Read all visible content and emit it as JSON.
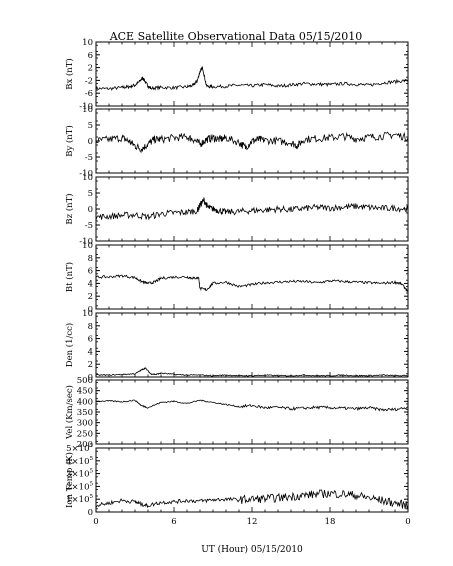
{
  "title": "ACE Satellite Observational Data   05/15/2010",
  "xlabel": "UT (Hour)   05/15/2010",
  "xticks": [
    "0",
    "6",
    "12",
    "18",
    "0"
  ],
  "chart_data": [
    {
      "type": "line",
      "ylabel": "Bx (nT)",
      "ylim": [
        -10,
        10
      ],
      "yticks": [
        "10",
        "6",
        "2",
        "-2",
        "-6",
        "-10"
      ],
      "x": [
        0,
        1,
        2,
        2.5,
        3,
        3.3,
        3.6,
        3.9,
        4.2,
        5,
        6,
        7,
        7.5,
        7.8,
        8.0,
        8.2,
        8.5,
        9,
        10,
        11,
        12,
        13,
        14,
        15,
        16,
        17,
        18,
        19,
        20,
        21,
        22,
        23,
        24
      ],
      "series": [
        {
          "values": [
            -4.5,
            -4.6,
            -4.2,
            -4,
            -3.5,
            -2.5,
            -1.2,
            -3.2,
            -4.5,
            -4.2,
            -4.3,
            -4,
            -3.5,
            -2,
            0.8,
            2,
            -3.8,
            -4,
            -3.8,
            -3.5,
            -3.7,
            -3.3,
            -3.8,
            -3.4,
            -3,
            -3.2,
            -3.3,
            -3,
            -3.2,
            -3.5,
            -2.8,
            -2.4,
            -2
          ]
        }
      ]
    },
    {
      "type": "line",
      "ylabel": "By (nT)",
      "ylim": [
        -10,
        10
      ],
      "yticks": [
        "10",
        "5",
        "0",
        "-5",
        "-10"
      ],
      "x": [
        0,
        1,
        2,
        2.5,
        3,
        3.5,
        4,
        4.5,
        5,
        6,
        7,
        7.5,
        8,
        8.5,
        9,
        9.5,
        10,
        11,
        11.5,
        12,
        12.5,
        13,
        14,
        15,
        15.5,
        16,
        17,
        18,
        19,
        20,
        21,
        22,
        23,
        24
      ],
      "series": [
        {
          "values": [
            0,
            0.5,
            1,
            0,
            -1.5,
            -2.5,
            -1,
            0.5,
            0.5,
            1,
            1.2,
            0.5,
            -1,
            0.5,
            1,
            0.5,
            1,
            -0.5,
            -2,
            0,
            0.5,
            0.2,
            0,
            -0.5,
            -1.5,
            0.5,
            0.8,
            1,
            1.5,
            0.7,
            1.2,
            1.5,
            2,
            1
          ]
        }
      ]
    },
    {
      "type": "line",
      "ylabel": "Bz (nT)",
      "ylim": [
        -10,
        10
      ],
      "yticks": [
        "10",
        "5",
        "0",
        "-5",
        "-10"
      ],
      "x": [
        0,
        1,
        2,
        3,
        4,
        5,
        6,
        7,
        7.8,
        8.0,
        8.3,
        8.6,
        9,
        9.5,
        10,
        11,
        12,
        13,
        14,
        15,
        16,
        17,
        18,
        19,
        20,
        21,
        22,
        23,
        24
      ],
      "series": [
        {
          "values": [
            -2.5,
            -2.3,
            -2,
            -1.8,
            -2.5,
            -1.5,
            -1.2,
            -1,
            -0.5,
            1.2,
            2.8,
            0.5,
            0,
            -0.5,
            -1,
            -0.8,
            -0.5,
            -0.3,
            0,
            -0.2,
            0.2,
            0.5,
            0.3,
            0.6,
            0.8,
            0.5,
            0.2,
            0.3,
            0
          ]
        }
      ]
    },
    {
      "type": "line",
      "ylabel": "Bt (nT)",
      "ylim": [
        0,
        10
      ],
      "yticks": [
        "10",
        "8",
        "6",
        "4",
        "2",
        "0"
      ],
      "x": [
        0,
        1,
        2,
        3,
        3.5,
        4,
        4.5,
        5,
        6,
        7,
        7.5,
        7.9,
        8.0,
        8.5,
        9,
        10,
        11,
        12,
        13,
        14,
        15,
        16,
        17,
        18,
        19,
        20,
        21,
        22,
        23,
        23.5,
        24
      ],
      "series": [
        {
          "values": [
            5,
            5,
            5.2,
            4.9,
            4.3,
            4,
            4.2,
            4.8,
            5,
            5,
            4.8,
            4.9,
            3.2,
            3,
            4,
            4.2,
            3.5,
            3.8,
            4.1,
            4.2,
            4.3,
            4.3,
            4.1,
            4.4,
            4.3,
            4.2,
            4.1,
            4,
            4.2,
            3.9,
            2.8
          ]
        }
      ]
    },
    {
      "type": "line",
      "ylabel": "Den (1/cc)",
      "ylim": [
        0,
        10
      ],
      "yticks": [
        "10",
        "8",
        "6",
        "4",
        "2",
        "0"
      ],
      "x": [
        0,
        1,
        2,
        3,
        3.5,
        3.8,
        4.2,
        4.6,
        5,
        6,
        7,
        8,
        9,
        10,
        11,
        12,
        13,
        14,
        15,
        16,
        17,
        18,
        19,
        20,
        21,
        22,
        23,
        24
      ],
      "series": [
        {
          "values": [
            0.3,
            0.3,
            0.4,
            0.5,
            1.1,
            1.4,
            0.5,
            0.4,
            0.6,
            0.4,
            0.3,
            0.3,
            0.2,
            0.3,
            0.2,
            0.2,
            0.3,
            0.2,
            0.2,
            0.3,
            0.2,
            0.2,
            0.3,
            0.2,
            0.2,
            0.3,
            0.2,
            0.2
          ]
        }
      ]
    },
    {
      "type": "line",
      "ylabel": "Vel (Km/sec)",
      "ylim": [
        200,
        500
      ],
      "yticks": [
        "500",
        "450",
        "400",
        "350",
        "300",
        "250",
        "200"
      ],
      "x": [
        0,
        1,
        2,
        3,
        3.5,
        4,
        5,
        6,
        7,
        8,
        9,
        10,
        11,
        12,
        13,
        14,
        15,
        16,
        17,
        18,
        19,
        20,
        21,
        22,
        23,
        24
      ],
      "series": [
        {
          "values": [
            400,
            402,
            398,
            405,
            380,
            370,
            395,
            400,
            390,
            405,
            395,
            385,
            375,
            380,
            370,
            372,
            365,
            368,
            372,
            370,
            368,
            365,
            370,
            360,
            362,
            372
          ]
        }
      ]
    },
    {
      "type": "line",
      "ylabel": "Ion Temp (K)",
      "ylim": [
        0,
        500000
      ],
      "yticks": [
        "5×10",
        "4×10",
        "3×10",
        "2×10",
        "1×10",
        "0"
      ],
      "yticks_sup": [
        "5",
        "5",
        "5",
        "5",
        "5",
        ""
      ],
      "x": [
        0,
        1,
        2,
        3,
        3.5,
        4,
        5,
        6,
        7,
        8,
        9,
        10,
        11,
        12,
        13,
        14,
        15,
        16,
        17,
        18,
        19,
        20,
        21,
        22,
        23,
        24
      ],
      "series": [
        {
          "values": [
            50000,
            70000,
            90000,
            80000,
            60000,
            50000,
            75000,
            80000,
            90000,
            85000,
            95000,
            100000,
            95000,
            100000,
            105000,
            110000,
            120000,
            130000,
            140000,
            145000,
            140000,
            130000,
            110000,
            90000,
            70000,
            50000
          ]
        }
      ]
    }
  ]
}
